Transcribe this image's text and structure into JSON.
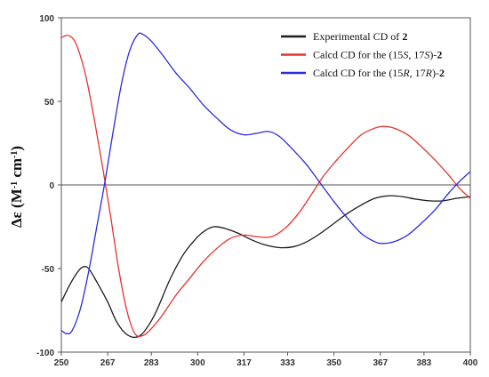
{
  "chart_data": {
    "type": "line",
    "title": "",
    "xlabel": "",
    "ylabel": {
      "pre": "Δε (M",
      "sup1": "-1",
      "mid": " cm",
      "sup2": "-1",
      "post": ")"
    },
    "xlim": [
      250,
      400
    ],
    "ylim": [
      -100,
      100
    ],
    "xticks": [
      250,
      267,
      283,
      300,
      317,
      333,
      350,
      367,
      383,
      400
    ],
    "yticks": [
      100,
      50,
      0,
      -50,
      -100
    ],
    "zero_line": true,
    "legend_position": "top-right",
    "series": [
      {
        "legend": {
          "pre": "Experimental CD of ",
          "bold": "2"
        },
        "color": "#1a1a1a",
        "points": [
          [
            250,
            -70
          ],
          [
            253,
            -60
          ],
          [
            256,
            -52
          ],
          [
            258,
            -49
          ],
          [
            260,
            -50
          ],
          [
            263,
            -58
          ],
          [
            267,
            -70
          ],
          [
            270,
            -81
          ],
          [
            273,
            -88
          ],
          [
            276,
            -91
          ],
          [
            279,
            -90
          ],
          [
            282,
            -84
          ],
          [
            285,
            -75
          ],
          [
            290,
            -56
          ],
          [
            295,
            -41
          ],
          [
            300,
            -31
          ],
          [
            303,
            -27
          ],
          [
            306,
            -25
          ],
          [
            310,
            -26
          ],
          [
            315,
            -29
          ],
          [
            320,
            -33
          ],
          [
            325,
            -36
          ],
          [
            330,
            -37.5
          ],
          [
            335,
            -37
          ],
          [
            340,
            -34
          ],
          [
            345,
            -29
          ],
          [
            350,
            -23
          ],
          [
            355,
            -17
          ],
          [
            360,
            -12
          ],
          [
            365,
            -8
          ],
          [
            370,
            -6.5
          ],
          [
            375,
            -7
          ],
          [
            380,
            -8.5
          ],
          [
            385,
            -9.5
          ],
          [
            390,
            -9.5
          ],
          [
            395,
            -8
          ],
          [
            400,
            -7
          ]
        ]
      },
      {
        "legend": {
          "pre": "Calcd CD for the (15",
          "i1": "S",
          "mid": ", 17",
          "i2": "S",
          "post": ")-",
          "bold": "2"
        },
        "color": "#e8312f",
        "points": [
          [
            250,
            88
          ],
          [
            252,
            89.5
          ],
          [
            254,
            88
          ],
          [
            256,
            82
          ],
          [
            259,
            65
          ],
          [
            262,
            40
          ],
          [
            265,
            12
          ],
          [
            268,
            -18
          ],
          [
            271,
            -50
          ],
          [
            274,
            -75
          ],
          [
            277,
            -89
          ],
          [
            280,
            -90
          ],
          [
            283,
            -86
          ],
          [
            287,
            -78
          ],
          [
            292,
            -66
          ],
          [
            297,
            -56
          ],
          [
            302,
            -46
          ],
          [
            307,
            -38
          ],
          [
            312,
            -32
          ],
          [
            317,
            -30
          ],
          [
            322,
            -31
          ],
          [
            327,
            -31
          ],
          [
            332,
            -26
          ],
          [
            337,
            -17
          ],
          [
            342,
            -5
          ],
          [
            346,
            5
          ],
          [
            350,
            13
          ],
          [
            355,
            22
          ],
          [
            360,
            30
          ],
          [
            365,
            34
          ],
          [
            368,
            35
          ],
          [
            372,
            34
          ],
          [
            377,
            30
          ],
          [
            382,
            23
          ],
          [
            387,
            15
          ],
          [
            392,
            6
          ],
          [
            396,
            -2
          ],
          [
            400,
            -8
          ]
        ]
      },
      {
        "legend": {
          "pre": "Calcd CD for the (15",
          "i1": "R",
          "mid": ", 17",
          "i2": "R",
          "post": ")-",
          "bold": "2"
        },
        "color": "#2b2be0",
        "points": [
          [
            250,
            -87
          ],
          [
            252,
            -89
          ],
          [
            254,
            -87
          ],
          [
            257,
            -74
          ],
          [
            260,
            -52
          ],
          [
            263,
            -25
          ],
          [
            266,
            2
          ],
          [
            269,
            32
          ],
          [
            272,
            60
          ],
          [
            275,
            80
          ],
          [
            278,
            90
          ],
          [
            280,
            90
          ],
          [
            283,
            86
          ],
          [
            287,
            78
          ],
          [
            292,
            67
          ],
          [
            297,
            58
          ],
          [
            302,
            48
          ],
          [
            307,
            40
          ],
          [
            312,
            33
          ],
          [
            317,
            30
          ],
          [
            322,
            31
          ],
          [
            326,
            32
          ],
          [
            330,
            29
          ],
          [
            335,
            21
          ],
          [
            340,
            12
          ],
          [
            345,
            1
          ],
          [
            350,
            -10
          ],
          [
            355,
            -20
          ],
          [
            360,
            -29
          ],
          [
            365,
            -34
          ],
          [
            368,
            -35
          ],
          [
            372,
            -34
          ],
          [
            377,
            -30
          ],
          [
            382,
            -23
          ],
          [
            387,
            -15
          ],
          [
            392,
            -5
          ],
          [
            396,
            2
          ],
          [
            400,
            8
          ]
        ]
      }
    ]
  }
}
